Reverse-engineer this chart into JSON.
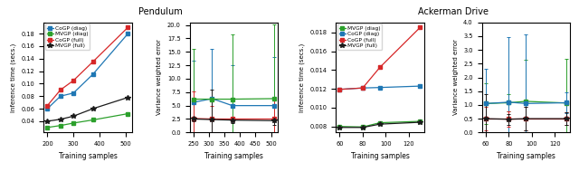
{
  "pendulum": {
    "title": "Pendulum",
    "inference": {
      "x": [
        200,
        250,
        300,
        375,
        510
      ],
      "cogp_diag": [
        0.06,
        0.08,
        0.085,
        0.115,
        0.18
      ],
      "mvgp_diag": [
        0.03,
        0.033,
        0.037,
        0.042,
        0.052
      ],
      "cogp_full": [
        0.065,
        0.09,
        0.105,
        0.135,
        0.19
      ],
      "mvgp_full": [
        0.04,
        0.043,
        0.048,
        0.06,
        0.078
      ],
      "xlabel": "Training samples",
      "ylabel": "Inference time (secs.)",
      "xticks": [
        200,
        300,
        400,
        500
      ],
      "ylim_min": 0.02
    },
    "variance": {
      "x": [
        250,
        310,
        375,
        510
      ],
      "cogp_diag_mean": [
        5.6,
        6.3,
        5.0,
        5.0
      ],
      "cogp_diag_err": [
        7.8,
        9.3,
        7.5,
        9.0
      ],
      "mvgp_diag_mean": [
        6.2,
        6.2,
        6.2,
        6.3
      ],
      "mvgp_diag_err": [
        9.3,
        0.5,
        12.0,
        13.8
      ],
      "cogp_full_mean": [
        2.6,
        2.5,
        2.5,
        2.5
      ],
      "cogp_full_err": [
        5.0,
        2.5,
        0.5,
        4.0
      ],
      "mvgp_full_mean": [
        2.5,
        2.4,
        2.3,
        2.2
      ],
      "mvgp_full_err": [
        0.5,
        5.5,
        0.5,
        0.8
      ],
      "xlabel": "Training samples",
      "ylabel": "Variance weighted error",
      "xticks": [
        250,
        300,
        350,
        400,
        450,
        500
      ],
      "ylim": [
        0,
        20.5
      ]
    }
  },
  "ackerman": {
    "title": "Ackerman Drive",
    "inference": {
      "x": [
        60,
        80,
        95,
        130
      ],
      "mvgp_diag": [
        0.008,
        0.00795,
        0.0084,
        0.00855
      ],
      "cogp_diag": [
        0.01195,
        0.0121,
        0.01215,
        0.0123
      ],
      "cogp_full": [
        0.01195,
        0.0121,
        0.0143,
        0.01855
      ],
      "mvgp_full": [
        0.0079,
        0.0079,
        0.00825,
        0.00845
      ],
      "xlabel": "Training samples",
      "ylabel": "Inference time (secs.)",
      "xticks": [
        60,
        80,
        100,
        120
      ]
    },
    "variance": {
      "x": [
        60,
        80,
        95,
        130
      ],
      "mvgp_diag_mean": [
        1.05,
        1.08,
        1.13,
        1.07
      ],
      "mvgp_diag_err": [
        0.75,
        0.3,
        1.5,
        1.6
      ],
      "cogp_diag_mean": [
        1.05,
        1.1,
        1.05,
        1.08
      ],
      "cogp_diag_err": [
        1.25,
        2.35,
        2.5,
        0.38
      ],
      "cogp_full_mean": [
        0.5,
        0.5,
        0.5,
        0.5
      ],
      "cogp_full_err": [
        0.42,
        0.28,
        0.42,
        0.22
      ],
      "mvgp_full_mean": [
        0.5,
        0.48,
        0.5,
        0.5
      ],
      "mvgp_full_err": [
        0.88,
        0.2,
        0.42,
        0.22
      ],
      "xlabel": "Training samples",
      "ylabel": "Variance weighted error",
      "xticks": [
        60,
        80,
        100,
        120
      ],
      "ylim": [
        0,
        4.0
      ]
    }
  },
  "colors": {
    "cogp_diag": "#1f77b4",
    "mvgp_diag": "#2ca02c",
    "cogp_full": "#d62728",
    "mvgp_full": "#1a1a1a"
  },
  "legend_pendulum": [
    [
      "CoGP (diag)",
      "cogp_diag",
      "s"
    ],
    [
      "MVGP (diag)",
      "mvgp_diag",
      "s"
    ],
    [
      "CoGP (full)",
      "cogp_full",
      "s"
    ],
    [
      "MVGP (full)",
      "mvgp_full",
      "*"
    ]
  ],
  "legend_ackerman": [
    [
      "MVGP (diag)",
      "mvgp_diag",
      "s"
    ],
    [
      "CoGP (diag)",
      "cogp_diag",
      "s"
    ],
    [
      "CoGP (full)",
      "cogp_full",
      "s"
    ],
    [
      "MVGP (full)",
      "mvgp_full",
      "*"
    ]
  ]
}
